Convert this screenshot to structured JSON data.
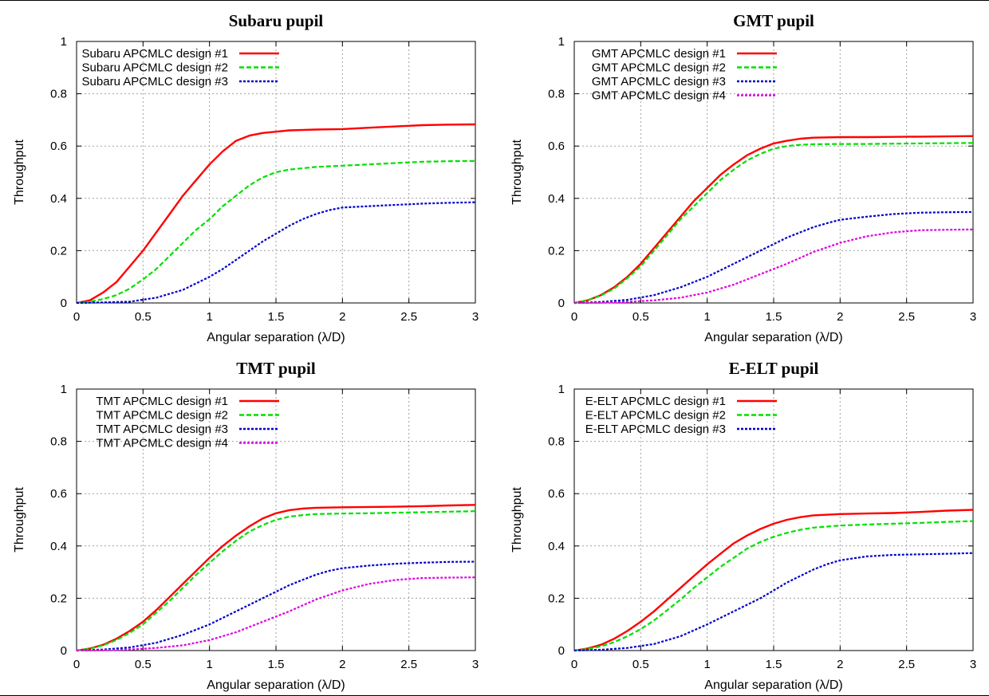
{
  "figure": {
    "colors": {
      "design_1": "#ff0000",
      "design_2": "#00e000",
      "design_3": "#0000cc",
      "design_4": "#e000e0",
      "grid": "#a0a0a0",
      "axes": "#000000"
    }
  },
  "chart_data": [
    {
      "type": "line",
      "title": "Subaru pupil",
      "xlabel": "Angular separation (λ/D)",
      "ylabel": "Throughput",
      "xlim": [
        0,
        3
      ],
      "ylim": [
        0,
        1
      ],
      "x_ticks": [
        "0",
        "0.5",
        "1",
        "1.5",
        "2",
        "2.5",
        "3"
      ],
      "y_ticks": [
        "0",
        "0.2",
        "0.4",
        "0.6",
        "0.8",
        "1"
      ],
      "grid": true,
      "legend_position": "top-left",
      "series": [
        {
          "name": "Subaru APCMLC design #1",
          "style": "solid",
          "x": [
            0,
            0.1,
            0.2,
            0.3,
            0.4,
            0.5,
            0.6,
            0.7,
            0.8,
            0.9,
            1.0,
            1.1,
            1.2,
            1.3,
            1.4,
            1.5,
            1.6,
            1.8,
            2.0,
            2.2,
            2.4,
            2.6,
            2.8,
            3.0
          ],
          "y": [
            0,
            0.01,
            0.04,
            0.08,
            0.14,
            0.2,
            0.27,
            0.34,
            0.41,
            0.47,
            0.53,
            0.58,
            0.62,
            0.64,
            0.65,
            0.655,
            0.66,
            0.663,
            0.665,
            0.67,
            0.675,
            0.68,
            0.682,
            0.683
          ]
        },
        {
          "name": "Subaru APCMLC design #2",
          "style": "dashed",
          "x": [
            0,
            0.1,
            0.2,
            0.3,
            0.4,
            0.5,
            0.6,
            0.7,
            0.8,
            0.9,
            1.0,
            1.1,
            1.2,
            1.3,
            1.4,
            1.5,
            1.6,
            1.8,
            2.0,
            2.2,
            2.4,
            2.6,
            2.8,
            3.0
          ],
          "y": [
            0,
            0.005,
            0.015,
            0.03,
            0.055,
            0.09,
            0.13,
            0.18,
            0.23,
            0.28,
            0.32,
            0.37,
            0.41,
            0.45,
            0.48,
            0.5,
            0.51,
            0.52,
            0.525,
            0.53,
            0.535,
            0.54,
            0.542,
            0.543
          ]
        },
        {
          "name": "Subaru APCMLC design #3",
          "style": "dotted",
          "x": [
            0,
            0.2,
            0.4,
            0.6,
            0.8,
            1.0,
            1.1,
            1.2,
            1.3,
            1.4,
            1.5,
            1.6,
            1.7,
            1.8,
            1.9,
            2.0,
            2.2,
            2.4,
            2.6,
            2.8,
            3.0
          ],
          "y": [
            0,
            0.002,
            0.005,
            0.02,
            0.05,
            0.1,
            0.13,
            0.165,
            0.2,
            0.235,
            0.265,
            0.295,
            0.32,
            0.34,
            0.355,
            0.365,
            0.37,
            0.375,
            0.38,
            0.383,
            0.385
          ]
        }
      ]
    },
    {
      "type": "line",
      "title": "GMT pupil",
      "xlabel": "Angular separation (λ/D)",
      "ylabel": "Throughput",
      "xlim": [
        0,
        3
      ],
      "ylim": [
        0,
        1
      ],
      "x_ticks": [
        "0",
        "0.5",
        "1",
        "1.5",
        "2",
        "2.5",
        "3"
      ],
      "y_ticks": [
        "0",
        "0.2",
        "0.4",
        "0.6",
        "0.8",
        "1"
      ],
      "grid": true,
      "legend_position": "top-left",
      "series": [
        {
          "name": "GMT APCMLC design #1",
          "style": "solid",
          "x": [
            0,
            0.1,
            0.2,
            0.3,
            0.4,
            0.5,
            0.6,
            0.7,
            0.8,
            0.9,
            1.0,
            1.1,
            1.2,
            1.3,
            1.4,
            1.5,
            1.6,
            1.7,
            1.8,
            2.0,
            2.2,
            2.4,
            2.6,
            2.8,
            3.0
          ],
          "y": [
            0,
            0.01,
            0.03,
            0.06,
            0.1,
            0.15,
            0.21,
            0.27,
            0.33,
            0.39,
            0.44,
            0.49,
            0.53,
            0.565,
            0.59,
            0.61,
            0.62,
            0.628,
            0.632,
            0.634,
            0.634,
            0.635,
            0.636,
            0.637,
            0.638
          ]
        },
        {
          "name": "GMT APCMLC design #2",
          "style": "dashed",
          "x": [
            0,
            0.1,
            0.2,
            0.3,
            0.4,
            0.5,
            0.6,
            0.7,
            0.8,
            0.9,
            1.0,
            1.1,
            1.2,
            1.3,
            1.4,
            1.5,
            1.6,
            1.7,
            1.8,
            2.0,
            2.2,
            2.4,
            2.6,
            2.8,
            3.0
          ],
          "y": [
            0,
            0.01,
            0.028,
            0.055,
            0.095,
            0.14,
            0.2,
            0.26,
            0.32,
            0.37,
            0.42,
            0.47,
            0.51,
            0.545,
            0.57,
            0.59,
            0.6,
            0.605,
            0.607,
            0.608,
            0.608,
            0.609,
            0.61,
            0.611,
            0.612
          ]
        },
        {
          "name": "GMT APCMLC design #3",
          "style": "dotted",
          "x": [
            0,
            0.2,
            0.4,
            0.6,
            0.8,
            1.0,
            1.2,
            1.4,
            1.5,
            1.6,
            1.7,
            1.8,
            1.9,
            2.0,
            2.2,
            2.4,
            2.6,
            2.8,
            3.0
          ],
          "y": [
            0,
            0.004,
            0.012,
            0.03,
            0.06,
            0.1,
            0.15,
            0.2,
            0.225,
            0.25,
            0.27,
            0.29,
            0.305,
            0.318,
            0.33,
            0.34,
            0.345,
            0.347,
            0.348
          ]
        },
        {
          "name": "GMT APCMLC design #4",
          "style": "dotted",
          "x": [
            0,
            0.2,
            0.4,
            0.6,
            0.8,
            1.0,
            1.2,
            1.4,
            1.6,
            1.8,
            2.0,
            2.2,
            2.4,
            2.6,
            2.8,
            3.0
          ],
          "y": [
            0,
            0.001,
            0.004,
            0.01,
            0.02,
            0.04,
            0.07,
            0.11,
            0.15,
            0.195,
            0.23,
            0.255,
            0.27,
            0.278,
            0.28,
            0.281
          ]
        }
      ]
    },
    {
      "type": "line",
      "title": "TMT pupil",
      "xlabel": "Angular separation (λ/D)",
      "ylabel": "Throughput",
      "xlim": [
        0,
        3
      ],
      "ylim": [
        0,
        1
      ],
      "x_ticks": [
        "0",
        "0.5",
        "1",
        "1.5",
        "2",
        "2.5",
        "3"
      ],
      "y_ticks": [
        "0",
        "0.2",
        "0.4",
        "0.6",
        "0.8",
        "1"
      ],
      "grid": true,
      "legend_position": "top-left",
      "series": [
        {
          "name": "TMT APCMLC design #1",
          "style": "solid",
          "x": [
            0,
            0.1,
            0.2,
            0.3,
            0.4,
            0.5,
            0.6,
            0.7,
            0.8,
            0.9,
            1.0,
            1.1,
            1.2,
            1.3,
            1.4,
            1.5,
            1.6,
            1.7,
            1.8,
            2.0,
            2.2,
            2.4,
            2.6,
            2.8,
            3.0
          ],
          "y": [
            0,
            0.008,
            0.022,
            0.045,
            0.075,
            0.11,
            0.155,
            0.205,
            0.255,
            0.305,
            0.355,
            0.4,
            0.44,
            0.475,
            0.505,
            0.525,
            0.537,
            0.543,
            0.546,
            0.548,
            0.549,
            0.55,
            0.552,
            0.555,
            0.557
          ]
        },
        {
          "name": "TMT APCMLC design #2",
          "style": "dashed",
          "x": [
            0,
            0.1,
            0.2,
            0.3,
            0.4,
            0.5,
            0.6,
            0.7,
            0.8,
            0.9,
            1.0,
            1.1,
            1.2,
            1.3,
            1.4,
            1.5,
            1.6,
            1.7,
            1.8,
            2.0,
            2.2,
            2.4,
            2.6,
            2.8,
            3.0
          ],
          "y": [
            0,
            0.007,
            0.02,
            0.04,
            0.068,
            0.1,
            0.145,
            0.19,
            0.24,
            0.29,
            0.335,
            0.38,
            0.42,
            0.455,
            0.48,
            0.5,
            0.512,
            0.518,
            0.522,
            0.524,
            0.525,
            0.527,
            0.529,
            0.531,
            0.533
          ]
        },
        {
          "name": "TMT APCMLC design #3",
          "style": "dotted",
          "x": [
            0,
            0.2,
            0.4,
            0.6,
            0.8,
            1.0,
            1.2,
            1.4,
            1.5,
            1.6,
            1.7,
            1.8,
            1.9,
            2.0,
            2.2,
            2.4,
            2.6,
            2.8,
            3.0
          ],
          "y": [
            0,
            0.004,
            0.012,
            0.03,
            0.06,
            0.1,
            0.15,
            0.2,
            0.225,
            0.25,
            0.27,
            0.29,
            0.305,
            0.315,
            0.325,
            0.332,
            0.336,
            0.339,
            0.34
          ]
        },
        {
          "name": "TMT APCMLC design #4",
          "style": "dotted",
          "x": [
            0,
            0.2,
            0.4,
            0.6,
            0.8,
            1.0,
            1.2,
            1.4,
            1.6,
            1.8,
            2.0,
            2.2,
            2.4,
            2.6,
            2.8,
            3.0
          ],
          "y": [
            0,
            0.001,
            0.004,
            0.01,
            0.02,
            0.04,
            0.07,
            0.11,
            0.15,
            0.195,
            0.23,
            0.255,
            0.27,
            0.277,
            0.279,
            0.28
          ]
        }
      ]
    },
    {
      "type": "line",
      "title": "E-ELT pupil",
      "xlabel": "Angular separation (λ/D)",
      "ylabel": "Throughput",
      "xlim": [
        0,
        3
      ],
      "ylim": [
        0,
        1
      ],
      "x_ticks": [
        "0",
        "0.5",
        "1",
        "1.5",
        "2",
        "2.5",
        "3"
      ],
      "y_ticks": [
        "0",
        "0.2",
        "0.4",
        "0.6",
        "0.8",
        "1"
      ],
      "grid": true,
      "legend_position": "top-left",
      "series": [
        {
          "name": "E-ELT APCMLC design #1",
          "style": "solid",
          "x": [
            0,
            0.1,
            0.2,
            0.3,
            0.4,
            0.5,
            0.6,
            0.7,
            0.8,
            0.9,
            1.0,
            1.1,
            1.2,
            1.3,
            1.4,
            1.5,
            1.6,
            1.7,
            1.8,
            2.0,
            2.2,
            2.4,
            2.6,
            2.8,
            3.0
          ],
          "y": [
            0,
            0.008,
            0.022,
            0.045,
            0.075,
            0.11,
            0.15,
            0.195,
            0.24,
            0.285,
            0.33,
            0.37,
            0.41,
            0.44,
            0.465,
            0.485,
            0.5,
            0.51,
            0.517,
            0.522,
            0.524,
            0.526,
            0.53,
            0.535,
            0.538
          ]
        },
        {
          "name": "E-ELT APCMLC design #2",
          "style": "dashed",
          "x": [
            0,
            0.1,
            0.2,
            0.3,
            0.4,
            0.5,
            0.6,
            0.7,
            0.8,
            0.9,
            1.0,
            1.1,
            1.2,
            1.3,
            1.4,
            1.5,
            1.6,
            1.7,
            1.8,
            2.0,
            2.2,
            2.4,
            2.6,
            2.8,
            3.0
          ],
          "y": [
            0,
            0.006,
            0.016,
            0.032,
            0.055,
            0.082,
            0.115,
            0.155,
            0.195,
            0.24,
            0.28,
            0.32,
            0.355,
            0.39,
            0.415,
            0.435,
            0.45,
            0.462,
            0.47,
            0.478,
            0.482,
            0.485,
            0.488,
            0.492,
            0.495
          ]
        },
        {
          "name": "E-ELT APCMLC design #3",
          "style": "dotted",
          "x": [
            0,
            0.2,
            0.4,
            0.6,
            0.8,
            1.0,
            1.2,
            1.4,
            1.5,
            1.6,
            1.7,
            1.8,
            1.9,
            2.0,
            2.2,
            2.4,
            2.6,
            2.8,
            3.0
          ],
          "y": [
            0,
            0.003,
            0.01,
            0.025,
            0.055,
            0.1,
            0.15,
            0.2,
            0.23,
            0.26,
            0.285,
            0.31,
            0.33,
            0.345,
            0.36,
            0.366,
            0.368,
            0.37,
            0.373
          ]
        }
      ]
    }
  ]
}
